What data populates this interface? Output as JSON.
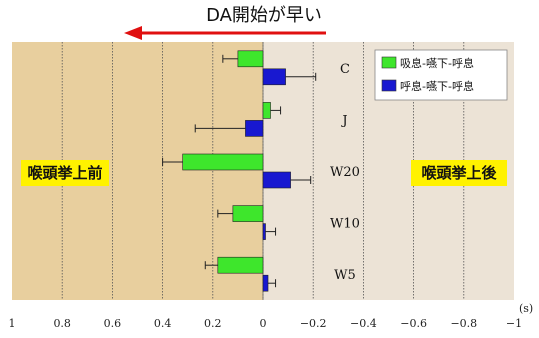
{
  "chart_data": {
    "type": "bar",
    "orientation": "horizontal",
    "header_text": "DA開始が早い",
    "categories": [
      "C",
      "J",
      "W20",
      "W10",
      "W5"
    ],
    "series": [
      {
        "name": "吸息-嚥下-呼息",
        "values": [
          0.1,
          -0.03,
          0.32,
          0.12,
          0.18
        ],
        "errors": [
          0.06,
          0.04,
          0.08,
          0.06,
          0.05
        ]
      },
      {
        "name": "呼息-嚥下-呼息",
        "values": [
          -0.09,
          0.07,
          -0.11,
          -0.01,
          -0.02
        ],
        "errors": [
          0.12,
          0.2,
          0.08,
          0.04,
          0.03
        ]
      }
    ],
    "xlim": [
      1,
      -1
    ],
    "x_ticks": [
      "1",
      "0.8",
      "0.6",
      "0.4",
      "0.2",
      "0",
      "−0.2",
      "−0.4",
      "−0.6",
      "−0.8",
      "−1"
    ],
    "x_unit": "(s)",
    "left_region_label": "喉頭挙上前",
    "right_region_label": "喉頭挙上後",
    "grid": true,
    "legend_position": "top-right"
  },
  "colors": {
    "left_region": "#e8cf9e",
    "right_region": "#ece3d6",
    "series_1": "#3ee62c",
    "series_2": "#1818d0",
    "label_box": "#fff200",
    "arrow": "#e01010"
  }
}
